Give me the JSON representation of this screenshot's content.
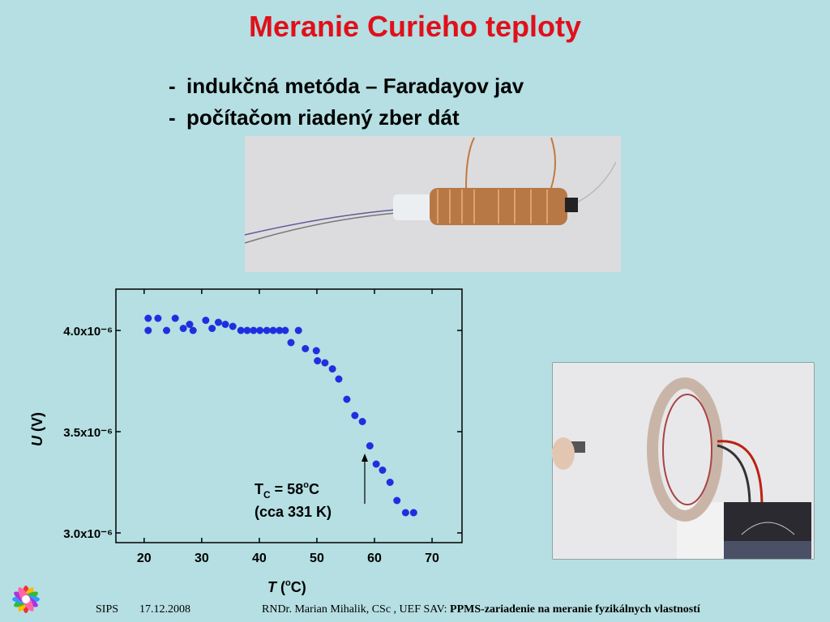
{
  "slide": {
    "title": "Meranie Curieho teploty",
    "bullets": [
      {
        "dash": "-",
        "text": "indukčná metóda – Faradayov jav"
      },
      {
        "dash": "-",
        "text": "počítačom riadený zber dát"
      }
    ],
    "footer": {
      "event": "SIPS",
      "date": "17.12.2008",
      "author": "RNDr. Marian Mihalik, CSc , UEF SAV:",
      "topic": "PPMS-zariadenie na meranie fyzikálnych vlastností"
    }
  },
  "chart_data": {
    "type": "scatter",
    "color": "#1f2fe0",
    "xlabel": {
      "italic": "T",
      "open": " (",
      "sup": "o",
      "close": "C)"
    },
    "ylabel": {
      "italic": "U",
      "rest": " (V)"
    },
    "annotation": {
      "t": "T",
      "sub": "C",
      "eq": " = 58",
      "deg": "o",
      "unit": "C",
      "line2": "(cca 331 K)"
    },
    "xlim": [
      15.1,
      75.2
    ],
    "ylim": [
      2.952e-06,
      4.204e-06
    ],
    "xticks": [
      20,
      30,
      40,
      50,
      60,
      70
    ],
    "yticks": [
      {
        "value": 3e-06,
        "label": "3.0x10⁻⁶"
      },
      {
        "value": 3.5e-06,
        "label": "3.5x10⁻⁶"
      },
      {
        "value": 4e-06,
        "label": "4.0x10⁻⁶"
      }
    ],
    "x": [
      20.7,
      20.7,
      22.4,
      23.9,
      25.4,
      26.8,
      27.9,
      28.5,
      30.7,
      31.8,
      32.9,
      34.1,
      35.4,
      36.8,
      37.9,
      39.0,
      40.1,
      41.3,
      42.4,
      43.5,
      44.5,
      45.5,
      46.8,
      48.0,
      49.9,
      50.1,
      51.4,
      52.7,
      53.8,
      55.2,
      56.6,
      57.9,
      59.2,
      60.3,
      61.4,
      62.7,
      63.9,
      65.4,
      66.8
    ],
    "values": [
      4e-06,
      4.06e-06,
      4.06e-06,
      4e-06,
      4.06e-06,
      4.01e-06,
      4.03e-06,
      4e-06,
      4.05e-06,
      4.01e-06,
      4.04e-06,
      4.03e-06,
      4.02e-06,
      4e-06,
      4e-06,
      4e-06,
      4e-06,
      4e-06,
      4e-06,
      4e-06,
      4e-06,
      3.94e-06,
      4e-06,
      3.91e-06,
      3.9e-06,
      3.85e-06,
      3.84e-06,
      3.81e-06,
      3.76e-06,
      3.66e-06,
      3.58e-06,
      3.55e-06,
      3.43e-06,
      3.34e-06,
      3.31e-06,
      3.25e-06,
      3.16e-06,
      3.1e-06,
      3.1e-06
    ]
  }
}
